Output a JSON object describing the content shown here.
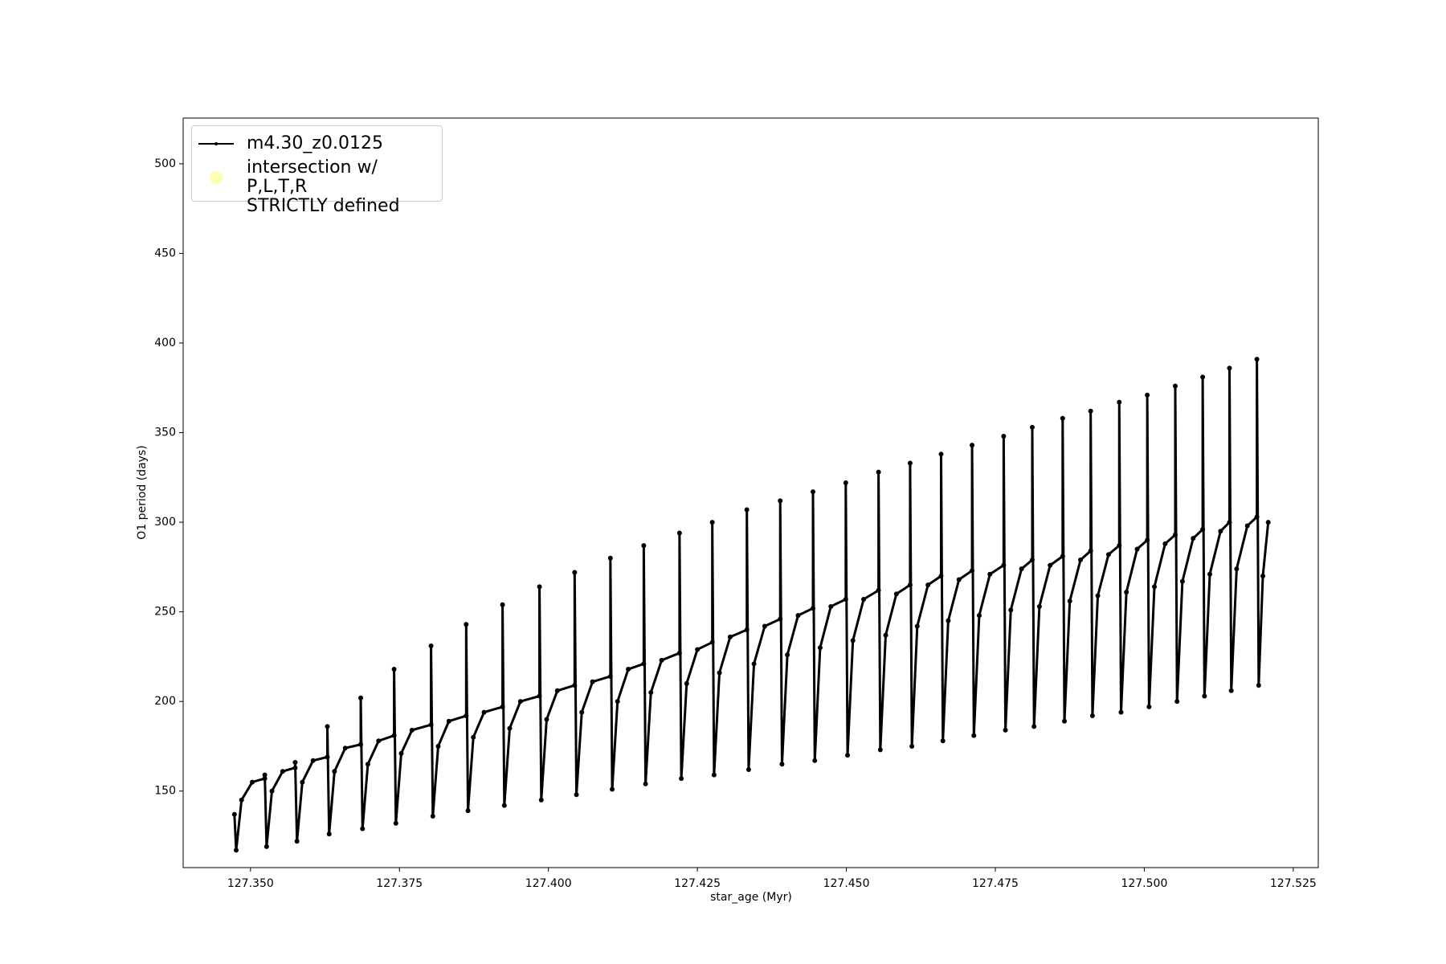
{
  "chart_data": {
    "type": "line",
    "xlabel": "star_age (Myr)",
    "ylabel": "O1 period (days)",
    "x": [
      127.3473,
      127.3476,
      127.3485,
      127.3503,
      127.3524,
      127.3524,
      127.3527,
      127.3536,
      127.3554,
      127.3575,
      127.3575,
      127.3578,
      127.3587,
      127.3605,
      127.3629,
      127.3629,
      127.3632,
      127.3641,
      127.3659,
      127.3685,
      127.3685,
      127.3688,
      127.3697,
      127.3715,
      127.3741,
      127.3741,
      127.3744,
      127.3753,
      127.3771,
      127.3803,
      127.3803,
      127.3806,
      127.3815,
      127.3833,
      127.3862,
      127.3862,
      127.3865,
      127.3874,
      127.3892,
      127.3923,
      127.3923,
      127.3926,
      127.3935,
      127.3953,
      127.3985,
      127.3985,
      127.3988,
      127.3997,
      127.4015,
      127.4044,
      127.4044,
      127.4047,
      127.4056,
      127.4074,
      127.4104,
      127.4104,
      127.4107,
      127.4116,
      127.4134,
      127.416,
      127.416,
      127.4163,
      127.4172,
      127.419,
      127.422,
      127.422,
      127.4223,
      127.4232,
      127.425,
      127.4275,
      127.4275,
      127.4278,
      127.4287,
      127.4305,
      127.4333,
      127.4333,
      127.4336,
      127.4345,
      127.4363,
      127.4389,
      127.4389,
      127.4392,
      127.4401,
      127.4419,
      127.4444,
      127.4444,
      127.4447,
      127.4456,
      127.4474,
      127.4499,
      127.4499,
      127.4502,
      127.4511,
      127.4529,
      127.4554,
      127.4554,
      127.4557,
      127.4566,
      127.4584,
      127.4607,
      127.4607,
      127.461,
      127.4619,
      127.4637,
      127.4659,
      127.4659,
      127.4662,
      127.4671,
      127.4689,
      127.4711,
      127.4711,
      127.4714,
      127.4723,
      127.4741,
      127.4764,
      127.4764,
      127.4767,
      127.4776,
      127.4794,
      127.4812,
      127.4812,
      127.4815,
      127.4824,
      127.4842,
      127.4863,
      127.4863,
      127.4866,
      127.4875,
      127.4893,
      127.491,
      127.491,
      127.4913,
      127.4922,
      127.494,
      127.4958,
      127.4958,
      127.4961,
      127.497,
      127.4988,
      127.5005,
      127.5005,
      127.5008,
      127.5017,
      127.5035,
      127.5052,
      127.5052,
      127.5055,
      127.5064,
      127.5082,
      127.5098,
      127.5098,
      127.5101,
      127.511,
      127.5128,
      127.5143,
      127.5143,
      127.5146,
      127.5155,
      127.5173,
      127.5189,
      127.5189,
      127.5192,
      127.5199,
      127.5208
    ],
    "series": [
      {
        "name": "m4.30_z0.0125",
        "color": "#000000",
        "values": [
          137,
          117,
          145,
          155,
          157,
          159,
          119,
          150,
          161,
          163,
          166,
          122,
          155,
          167,
          169,
          186,
          126,
          161,
          174,
          176,
          202,
          129,
          165,
          178,
          181,
          218,
          132,
          171,
          184,
          187,
          231,
          136,
          175,
          189,
          192,
          243,
          139,
          180,
          194,
          197,
          254,
          142,
          185,
          200,
          203,
          264,
          145,
          190,
          206,
          209,
          272,
          148,
          194,
          211,
          214,
          280,
          151,
          200,
          218,
          221,
          287,
          154,
          205,
          223,
          227,
          294,
          157,
          210,
          229,
          233,
          300,
          159,
          216,
          236,
          240,
          307,
          162,
          221,
          242,
          246,
          312,
          165,
          226,
          248,
          252,
          317,
          167,
          230,
          253,
          257,
          322,
          170,
          234,
          257,
          262,
          328,
          173,
          237,
          260,
          265,
          333,
          175,
          242,
          265,
          270,
          338,
          178,
          245,
          268,
          273,
          343,
          181,
          248,
          271,
          276,
          348,
          184,
          251,
          274,
          279,
          353,
          186,
          253,
          276,
          281,
          358,
          189,
          256,
          279,
          284,
          362,
          192,
          259,
          282,
          287,
          367,
          194,
          261,
          285,
          290,
          371,
          197,
          264,
          288,
          293,
          376,
          200,
          267,
          291,
          296,
          381,
          203,
          271,
          295,
          300,
          386,
          206,
          274,
          298,
          303,
          391,
          209,
          270,
          300
        ]
      },
      {
        "name": "intersection w/ P,L,T,R\nSTRICTLY defined",
        "color": "#ffffb3",
        "marker": "circle",
        "x": [],
        "values": []
      }
    ],
    "xlim": [
      127.3387,
      127.5292
    ],
    "ylim": [
      107.3,
      525.5
    ],
    "xticks": [
      {
        "value": 127.35,
        "label": "127.350"
      },
      127.375,
      {
        "value": 127.4,
        "label": "127.400"
      },
      127.425,
      {
        "value": 127.45,
        "label": "127.450"
      },
      127.475,
      {
        "value": 127.5,
        "label": "127.500"
      },
      127.525
    ],
    "yticks": [
      150,
      200,
      250,
      300,
      350,
      400,
      450,
      500
    ],
    "grid": false,
    "legend": "upper left"
  }
}
